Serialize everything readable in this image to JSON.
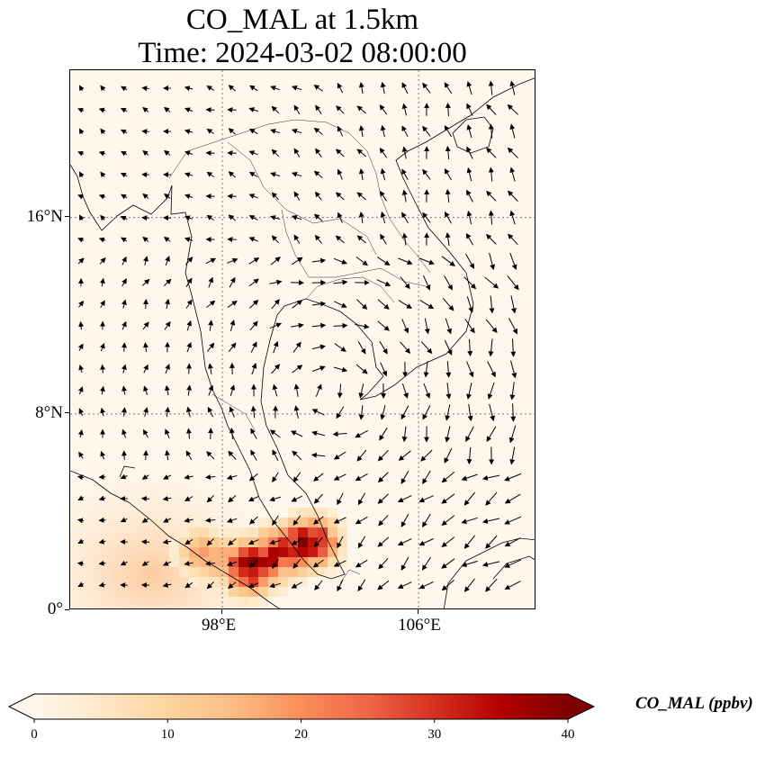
{
  "title": {
    "line1": "CO_MAL at 1.5km",
    "line2": "Time: 2024-03-02 08:00:00"
  },
  "map": {
    "lon_range": [
      91.8,
      110.8
    ],
    "lat_range": [
      0,
      22
    ],
    "gridlines": "dotted",
    "lat_ticks": [
      {
        "value": 16,
        "label": "16°N"
      },
      {
        "value": 8,
        "label": "8°N"
      },
      {
        "value": 0,
        "label": "0°"
      }
    ],
    "lon_ticks": [
      {
        "value": 98,
        "label": "98°E"
      },
      {
        "value": 106,
        "label": "106°E"
      }
    ],
    "field": "CO_MAL",
    "vectors": "wind arrows (black)",
    "high_concentration_areas": [
      {
        "lon": 98.9,
        "lat": 1.9,
        "value": 38
      },
      {
        "lon": 100.2,
        "lat": 2.6,
        "value": 25
      },
      {
        "lon": 101.5,
        "lat": 3.0,
        "value": 34
      },
      {
        "lon": 97.0,
        "lat": 2.5,
        "value": 18
      }
    ]
  },
  "colorbar": {
    "label": "CO_MAL (ppbv)",
    "min": 0,
    "max": 40,
    "extend": "both",
    "colormap": [
      "#fff7ec",
      "#fee8c8",
      "#fdd49e",
      "#fdbb84",
      "#fc8d59",
      "#ef6548",
      "#d7301f",
      "#b30000",
      "#7f0000"
    ],
    "ticks": [
      {
        "value": 0,
        "label": "0"
      },
      {
        "value": 10,
        "label": "10"
      },
      {
        "value": 20,
        "label": "20"
      },
      {
        "value": 30,
        "label": "30"
      },
      {
        "value": 40,
        "label": "40"
      }
    ]
  }
}
